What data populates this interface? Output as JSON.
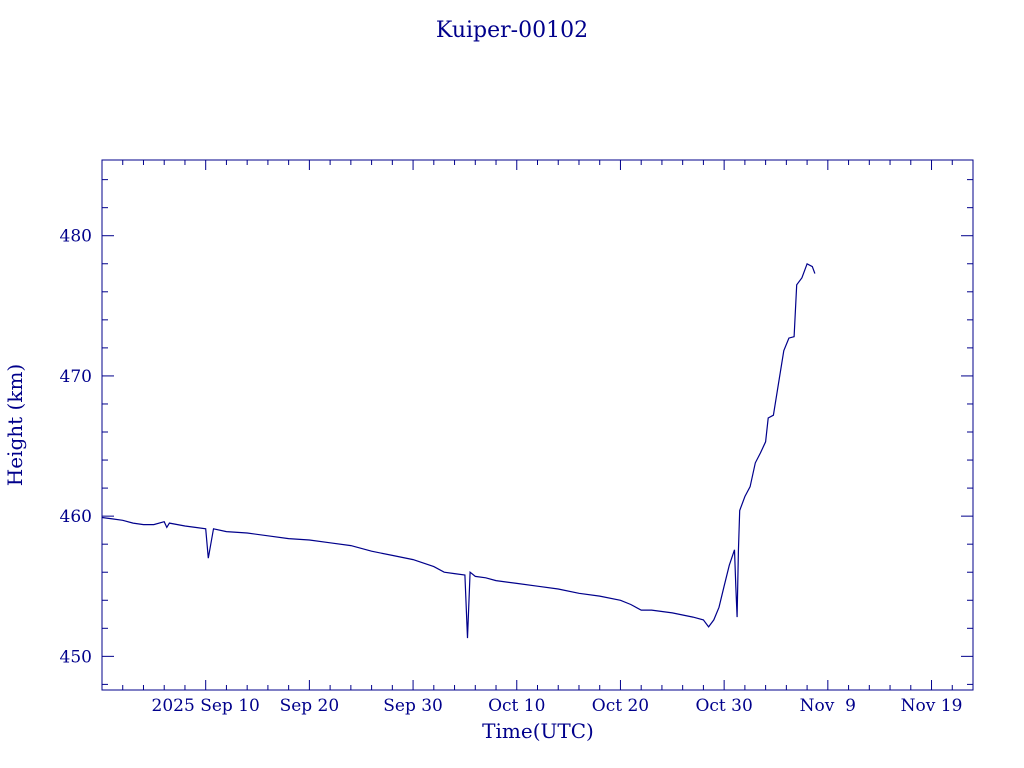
{
  "chart_data": {
    "type": "line",
    "title": "Kuiper-00102",
    "xlabel": "Time(UTC)",
    "ylabel": "Height (km)",
    "xlim": [
      "2025-08-31",
      "2025-11-23"
    ],
    "ylim": [
      447.6,
      485.4
    ],
    "x_ticks": [
      {
        "date": "2025-09-10",
        "label": "2025 Sep 10"
      },
      {
        "date": "2025-09-20",
        "label": "Sep 20"
      },
      {
        "date": "2025-09-30",
        "label": "Sep 30"
      },
      {
        "date": "2025-10-10",
        "label": "Oct 10"
      },
      {
        "date": "2025-10-20",
        "label": "Oct 20"
      },
      {
        "date": "2025-10-30",
        "label": "Oct 30"
      },
      {
        "date": "2025-11-09",
        "label": "Nov  9"
      },
      {
        "date": "2025-11-19",
        "label": "Nov 19"
      }
    ],
    "y_ticks": [
      450,
      460,
      470,
      480
    ],
    "grid": false,
    "color": "#00008b",
    "series": [
      {
        "points": [
          [
            "2025-08-31T00:00",
            459.9
          ],
          [
            "2025-09-01T00:00",
            459.8
          ],
          [
            "2025-09-02T00:00",
            459.7
          ],
          [
            "2025-09-03T00:00",
            459.5
          ],
          [
            "2025-09-04T00:00",
            459.4
          ],
          [
            "2025-09-05T00:00",
            459.4
          ],
          [
            "2025-09-06T00:00",
            459.6
          ],
          [
            "2025-09-06T06:00",
            459.2
          ],
          [
            "2025-09-06T12:00",
            459.5
          ],
          [
            "2025-09-08T00:00",
            459.3
          ],
          [
            "2025-09-09T00:00",
            459.2
          ],
          [
            "2025-09-10T00:00",
            459.1
          ],
          [
            "2025-09-10T06:00",
            457.0
          ],
          [
            "2025-09-10T18:00",
            459.1
          ],
          [
            "2025-09-12T00:00",
            458.9
          ],
          [
            "2025-09-14T00:00",
            458.8
          ],
          [
            "2025-09-16T00:00",
            458.6
          ],
          [
            "2025-09-18T00:00",
            458.4
          ],
          [
            "2025-09-20T00:00",
            458.3
          ],
          [
            "2025-09-22T00:00",
            458.1
          ],
          [
            "2025-09-24T00:00",
            457.9
          ],
          [
            "2025-09-26T00:00",
            457.5
          ],
          [
            "2025-09-28T00:00",
            457.2
          ],
          [
            "2025-09-30T00:00",
            456.9
          ],
          [
            "2025-10-02T00:00",
            456.4
          ],
          [
            "2025-10-03T00:00",
            456.0
          ],
          [
            "2025-10-04T00:00",
            455.9
          ],
          [
            "2025-10-05T00:00",
            455.8
          ],
          [
            "2025-10-05T06:00",
            451.3
          ],
          [
            "2025-10-05T12:00",
            456.0
          ],
          [
            "2025-10-06T00:00",
            455.7
          ],
          [
            "2025-10-07T00:00",
            455.6
          ],
          [
            "2025-10-08T00:00",
            455.4
          ],
          [
            "2025-10-10T00:00",
            455.2
          ],
          [
            "2025-10-12T00:00",
            455.0
          ],
          [
            "2025-10-14T00:00",
            454.8
          ],
          [
            "2025-10-16T00:00",
            454.5
          ],
          [
            "2025-10-18T00:00",
            454.3
          ],
          [
            "2025-10-20T00:00",
            454.0
          ],
          [
            "2025-10-21T00:00",
            453.7
          ],
          [
            "2025-10-22T00:00",
            453.3
          ],
          [
            "2025-10-23T00:00",
            453.3
          ],
          [
            "2025-10-25T00:00",
            453.1
          ],
          [
            "2025-10-27T00:00",
            452.8
          ],
          [
            "2025-10-28T00:00",
            452.6
          ],
          [
            "2025-10-28T12:00",
            452.1
          ],
          [
            "2025-10-29T00:00",
            452.6
          ],
          [
            "2025-10-29T12:00",
            453.5
          ],
          [
            "2025-10-30T00:00",
            455.0
          ],
          [
            "2025-10-30T12:00",
            456.5
          ],
          [
            "2025-10-31T00:00",
            457.6
          ],
          [
            "2025-10-31T03:00",
            455.0
          ],
          [
            "2025-10-31T06:00",
            452.8
          ],
          [
            "2025-10-31T09:00",
            457.5
          ],
          [
            "2025-10-31T12:00",
            460.4
          ],
          [
            "2025-11-01T00:00",
            461.4
          ],
          [
            "2025-11-01T12:00",
            462.1
          ],
          [
            "2025-11-02T00:00",
            463.8
          ],
          [
            "2025-11-02T12:00",
            464.5
          ],
          [
            "2025-11-03T00:00",
            465.3
          ],
          [
            "2025-11-03T06:00",
            467.0
          ],
          [
            "2025-11-03T18:00",
            467.2
          ],
          [
            "2025-11-04T06:00",
            469.5
          ],
          [
            "2025-11-04T18:00",
            471.8
          ],
          [
            "2025-11-05T06:00",
            472.7
          ],
          [
            "2025-11-05T18:00",
            472.8
          ],
          [
            "2025-11-06T00:00",
            476.5
          ],
          [
            "2025-11-06T12:00",
            477.0
          ],
          [
            "2025-11-07T00:00",
            478.0
          ],
          [
            "2025-11-07T12:00",
            477.8
          ],
          [
            "2025-11-07T18:00",
            477.3
          ]
        ]
      }
    ]
  }
}
